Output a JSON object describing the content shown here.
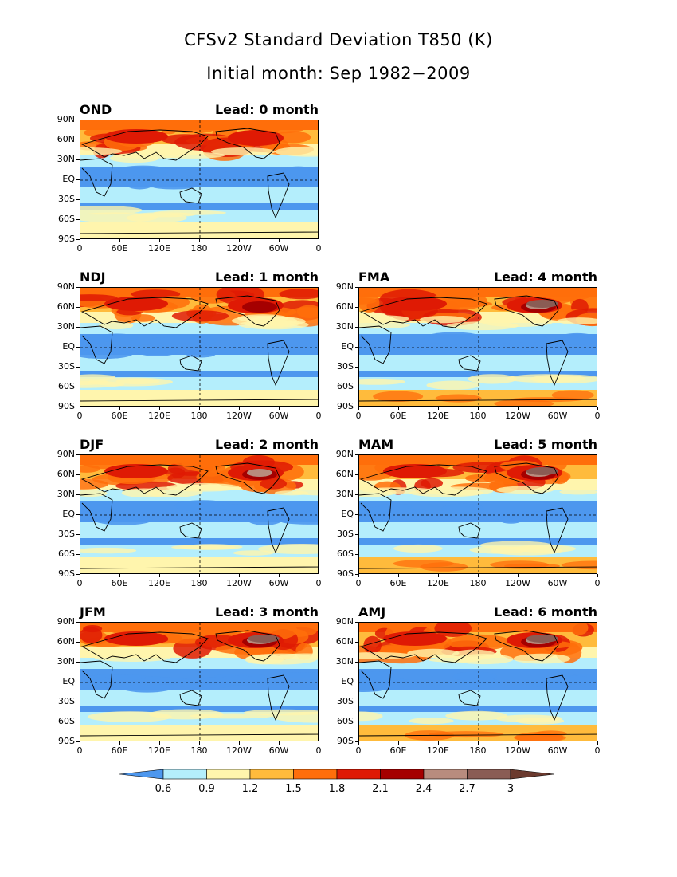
{
  "figure": {
    "title_line1": "CFSv2 Standard Deviation T850 (K)",
    "title_line2": "Initial month: Sep 1982−2009"
  },
  "axes": {
    "lat_labels": [
      "90N",
      "60N",
      "30N",
      "EQ",
      "30S",
      "60S",
      "90S"
    ],
    "lon_labels": [
      "0",
      "60E",
      "120E",
      "180",
      "120W",
      "60W",
      "0"
    ]
  },
  "panels": [
    {
      "season": "OND",
      "lead": "Lead: 0 month",
      "lead_months": 0
    },
    {
      "season": "NDJ",
      "lead": "Lead: 1 month",
      "lead_months": 1
    },
    {
      "season": "FMA",
      "lead": "Lead: 4 month",
      "lead_months": 4
    },
    {
      "season": "DJF",
      "lead": "Lead: 2 month",
      "lead_months": 2
    },
    {
      "season": "MAM",
      "lead": "Lead: 5 month",
      "lead_months": 5
    },
    {
      "season": "JFM",
      "lead": "Lead: 3 month",
      "lead_months": 3
    },
    {
      "season": "AMJ",
      "lead": "Lead: 6 month",
      "lead_months": 6
    }
  ],
  "colorbar": {
    "levels": [
      "0.6",
      "0.9",
      "1.2",
      "1.5",
      "1.8",
      "2.1",
      "2.4",
      "2.7",
      "3"
    ],
    "colors": [
      "#4d97ee",
      "#b4eefc",
      "#fff5ad",
      "#ffbb3c",
      "#ff6e0b",
      "#df1a04",
      "#a50000",
      "#b88c7e",
      "#8a5c54",
      "#6b3a2e"
    ]
  }
}
